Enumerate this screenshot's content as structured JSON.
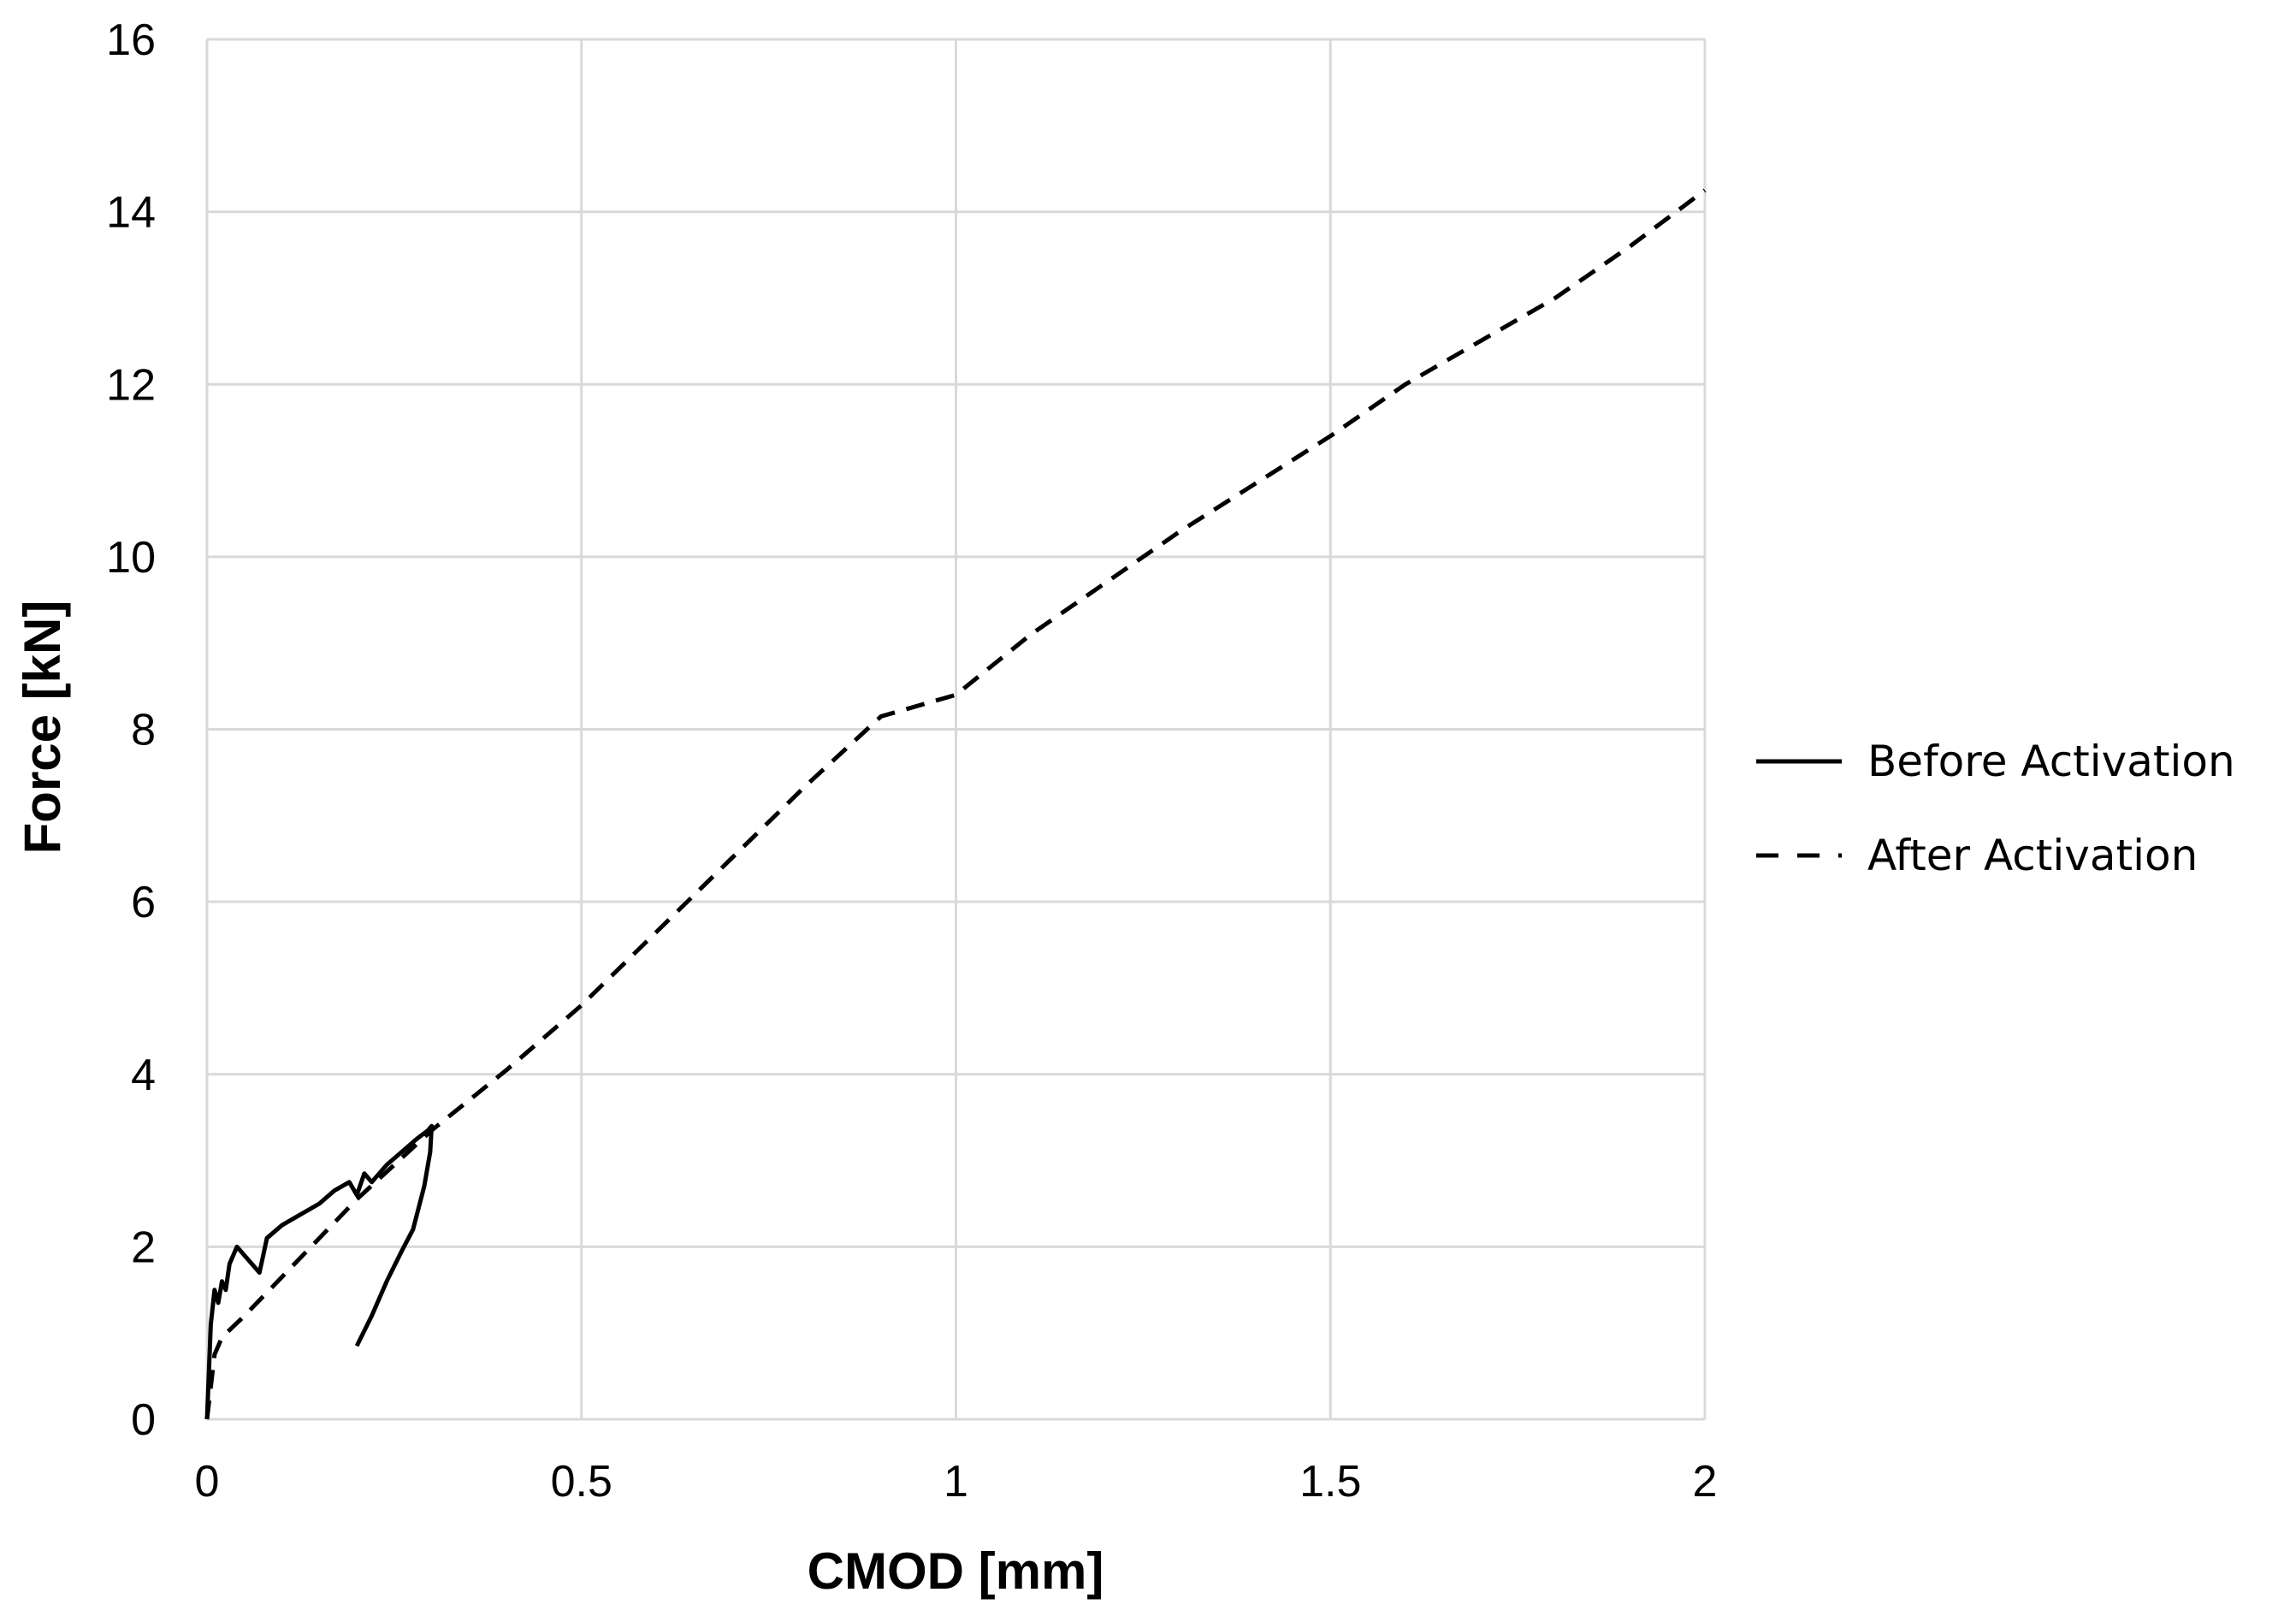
{
  "chart_data": {
    "type": "line",
    "title": "",
    "xlabel": "CMOD [mm]",
    "ylabel": "Force [kN]",
    "xlim": [
      0,
      2
    ],
    "ylim": [
      0,
      16
    ],
    "xticks": [
      0,
      0.5,
      1,
      1.5,
      2
    ],
    "xtick_labels": [
      "0",
      "0.5",
      "1",
      "1.5",
      "2"
    ],
    "yticks": [
      0,
      2,
      4,
      6,
      8,
      10,
      12,
      14,
      16
    ],
    "ytick_labels": [
      "0",
      "2",
      "4",
      "6",
      "8",
      "10",
      "12",
      "14",
      "16"
    ],
    "grid": true,
    "legend_position": "right",
    "series": [
      {
        "name": "Before Activation",
        "style": "solid",
        "color": "#000000",
        "x": [
          0,
          0.005,
          0.01,
          0.015,
          0.02,
          0.025,
          0.03,
          0.04,
          0.05,
          0.06,
          0.07,
          0.075,
          0.08,
          0.1,
          0.12,
          0.15,
          0.17,
          0.19,
          0.2,
          0.21,
          0.22,
          0.24,
          0.26,
          0.28,
          0.295,
          0.3,
          0.298,
          0.29,
          0.275,
          0.26,
          0.24,
          0.22,
          0.2
        ],
        "y": [
          0,
          1.1,
          1.5,
          1.35,
          1.6,
          1.5,
          1.8,
          2.0,
          1.9,
          1.8,
          1.7,
          1.9,
          2.1,
          2.25,
          2.35,
          2.5,
          2.65,
          2.75,
          2.6,
          2.85,
          2.75,
          2.95,
          3.1,
          3.25,
          3.35,
          3.4,
          3.1,
          2.7,
          2.2,
          1.95,
          1.6,
          1.2,
          0.85
        ]
      },
      {
        "name": "After Activation",
        "style": "dashed",
        "color": "#000000",
        "x": [
          0,
          0.01,
          0.02,
          0.05,
          0.1,
          0.15,
          0.2,
          0.25,
          0.3,
          0.4,
          0.5,
          0.6,
          0.7,
          0.8,
          0.9,
          1.0,
          1.1,
          1.2,
          1.3,
          1.4,
          1.5,
          1.6,
          1.7,
          1.8,
          1.9,
          2.0
        ],
        "y": [
          0,
          0.75,
          0.95,
          1.2,
          1.65,
          2.1,
          2.55,
          2.95,
          3.35,
          4.05,
          4.8,
          5.65,
          6.5,
          7.35,
          8.15,
          8.4,
          9.1,
          9.7,
          10.3,
          10.85,
          11.4,
          12.0,
          12.5,
          13.0,
          13.6,
          14.25
        ]
      }
    ]
  }
}
